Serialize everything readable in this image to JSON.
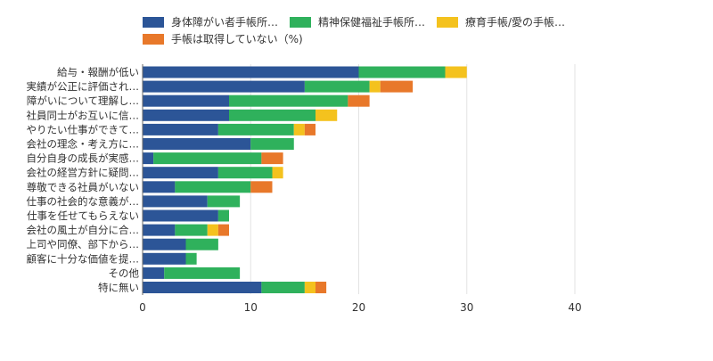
{
  "chart_data": {
    "type": "bar",
    "orientation": "horizontal",
    "stacked": true,
    "categories": [
      "給与・報酬が低い",
      "実績が公正に評価され…",
      "障がいについて理解し…",
      "社員同士がお互いに信…",
      "やりたい仕事ができて…",
      "会社の理念・考え方に…",
      "自分自身の成長が実感…",
      "会社の経営方針に疑問…",
      "尊敬できる社員がいない",
      "仕事の社会的な意義が…",
      "仕事を任せてもらえない",
      "会社の風土が自分に合…",
      "上司や同僚、部下から…",
      "顧客に十分な価値を提…",
      "その他",
      "特に無い"
    ],
    "series": [
      {
        "name": "身体障がい者手帳所…",
        "color": "#2c5597",
        "values": [
          20,
          15,
          8,
          8,
          7,
          10,
          1,
          7,
          3,
          6,
          7,
          3,
          4,
          4,
          2,
          11
        ]
      },
      {
        "name": "精神保健福祉手帳所…",
        "color": "#2fb15c",
        "values": [
          8,
          6,
          11,
          8,
          7,
          4,
          10,
          5,
          7,
          3,
          1,
          3,
          3,
          1,
          7,
          4
        ]
      },
      {
        "name": "療育手帳/愛の手帳…",
        "color": "#f4c21e",
        "values": [
          2,
          1,
          0,
          2,
          1,
          0,
          0,
          1,
          0,
          0,
          0,
          1,
          0,
          0,
          0,
          1
        ]
      },
      {
        "name": "手帳は取得していない（%)",
        "color": "#e8782a",
        "values": [
          0,
          3,
          2,
          0,
          1,
          0,
          2,
          0,
          2,
          0,
          0,
          1,
          0,
          0,
          0,
          1
        ]
      }
    ],
    "xlim": [
      0,
      40
    ],
    "xticks": [
      "0",
      "10",
      "20",
      "30",
      "40"
    ],
    "grid": true,
    "legend_position": "top"
  }
}
